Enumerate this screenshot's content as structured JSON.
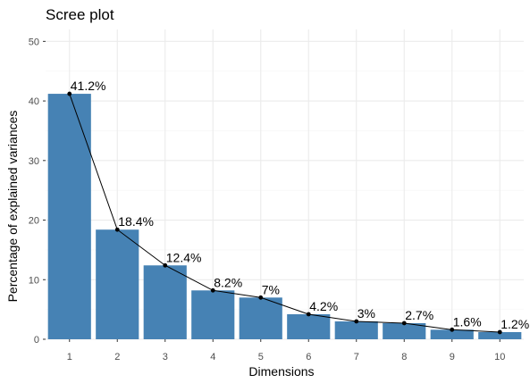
{
  "chart_data": {
    "type": "bar",
    "title": "Scree plot",
    "xlabel": "Dimensions",
    "ylabel": "Percentage of explained variances",
    "categories": [
      "1",
      "2",
      "3",
      "4",
      "5",
      "6",
      "7",
      "8",
      "9",
      "10"
    ],
    "values": [
      41.2,
      18.4,
      12.4,
      8.2,
      7.0,
      4.2,
      3.0,
      2.7,
      1.6,
      1.2
    ],
    "data_labels": [
      "41.2%",
      "18.4%",
      "12.4%",
      "8.2%",
      "7%",
      "4.2%",
      "3%",
      "2.7%",
      "1.6%",
      "1.2%"
    ],
    "yticks": [
      0,
      10,
      20,
      30,
      40,
      50
    ],
    "ylim": [
      0,
      52
    ],
    "overlay": "line-with-points",
    "grid": true,
    "legend": "none",
    "colors": {
      "bar": "#4682B4",
      "line": "#000000",
      "point": "#000000",
      "grid_major": "#EBEBEB",
      "grid_minor": "#F5F5F5"
    }
  }
}
